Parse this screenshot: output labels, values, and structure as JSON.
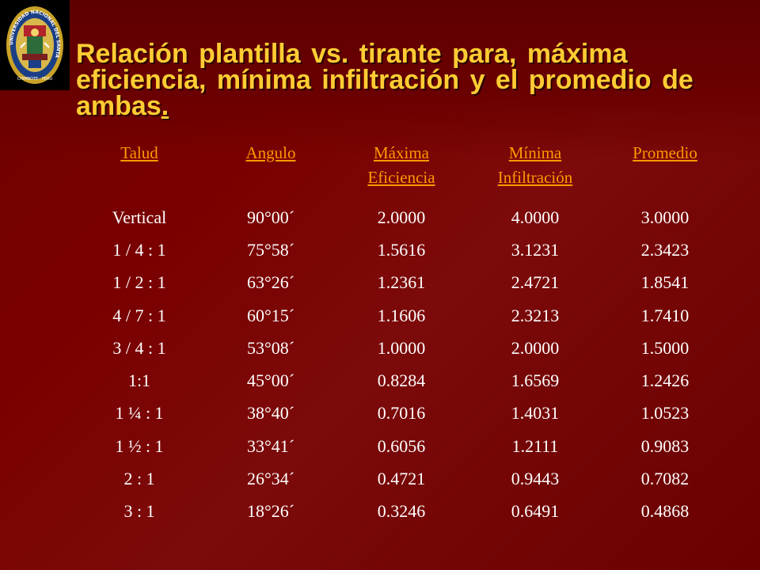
{
  "logo": {
    "name": "university-seal",
    "ring_text": "UNIVERSIDAD NACIONAL DEL SANTA",
    "bottom_text": "CHIMBOTE · PERÚ"
  },
  "title": {
    "main": "Relación plantilla vs. tirante para, máxima eficiencia, mínima infiltración y el promedio de ambas",
    "end_mark": "."
  },
  "table": {
    "headers": [
      {
        "line1": "Talud",
        "line2": ""
      },
      {
        "line1": "Angulo",
        "line2": ""
      },
      {
        "line1": "Máxima",
        "line2": "Eficiencia"
      },
      {
        "line1": "Mínima",
        "line2": "Infiltración"
      },
      {
        "line1": "Promedio",
        "line2": ""
      }
    ],
    "rows": [
      [
        "Vertical",
        "90°00´",
        "2.0000",
        "4.0000",
        "3.0000"
      ],
      [
        "1 / 4 : 1",
        "75°58´",
        "1.5616",
        "3.1231",
        "2.3423"
      ],
      [
        "1 / 2 : 1",
        "63°26´",
        "1.2361",
        "2.4721",
        "1.8541"
      ],
      [
        "4 / 7 : 1",
        "60°15´",
        "1.1606",
        "2.3213",
        "1.7410"
      ],
      [
        "3 / 4 : 1",
        "53°08´",
        "1.0000",
        "2.0000",
        "1.5000"
      ],
      [
        "1:1",
        "45°00´",
        "0.8284",
        "1.6569",
        "1.2426"
      ],
      [
        "1 ¼ : 1",
        "38°40´",
        "0.7016",
        "1.4031",
        "1.0523"
      ],
      [
        "1 ½ : 1",
        "33°41´",
        "0.6056",
        "1.2111",
        "0.9083"
      ],
      [
        "2 : 1",
        "26°34´",
        "0.4721",
        "0.9443",
        "0.7082"
      ],
      [
        "3 : 1",
        "18°26´",
        "0.3246",
        "0.6491",
        "0.4868"
      ]
    ]
  },
  "colors": {
    "background": "#7a0000",
    "title": "#ffcc33",
    "header": "#ff9900",
    "cell_text": "#ffffff"
  }
}
